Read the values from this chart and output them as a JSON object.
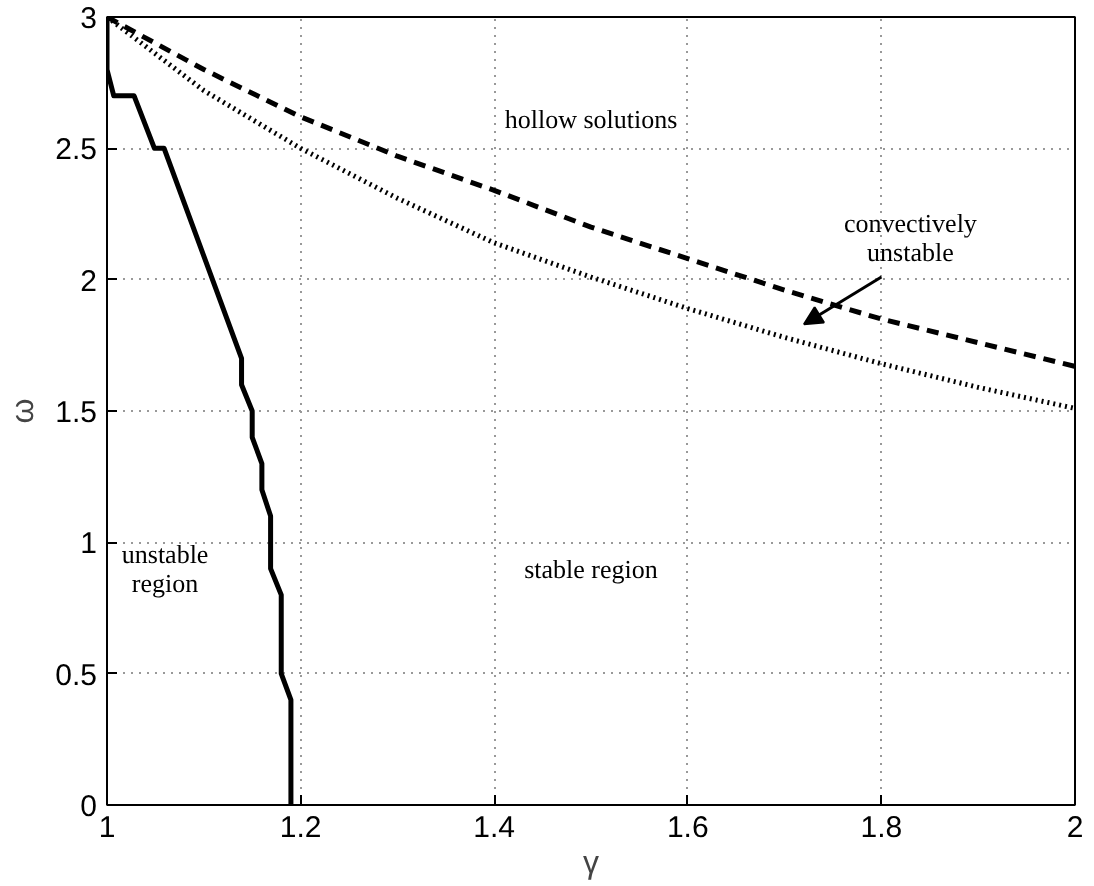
{
  "chart_data": {
    "type": "line",
    "xlabel": "γ",
    "ylabel": "ω",
    "xlim": [
      1,
      2
    ],
    "ylim": [
      0,
      3
    ],
    "xticks": [
      1,
      1.2,
      1.4,
      1.6,
      1.8,
      2
    ],
    "yticks": [
      0,
      0.5,
      1,
      1.5,
      2,
      2.5,
      3
    ],
    "grid": true,
    "series": [
      {
        "color": "#000000",
        "line_style": "solid",
        "x": [
          1,
          1,
          1.007,
          1.028,
          1.049,
          1.059,
          1.139,
          1.139,
          1.15,
          1.15,
          1.16,
          1.16,
          1.169,
          1.169,
          1.18,
          1.18,
          1.19,
          1.19
        ],
        "values": [
          3,
          2.8,
          2.7,
          2.7,
          2.5,
          2.5,
          1.7,
          1.6,
          1.5,
          1.4,
          1.3,
          1.2,
          1.1,
          0.9,
          0.8,
          0.5,
          0.4,
          0
        ]
      },
      {
        "color": "#000000",
        "line_style": "dashed",
        "x": [
          1,
          1.1,
          1.2,
          1.3,
          1.4,
          1.5,
          1.6,
          1.7,
          1.8,
          1.9,
          2
        ],
        "values": [
          3,
          2.8,
          2.62,
          2.47,
          2.34,
          2.2,
          2.08,
          1.96,
          1.85,
          1.76,
          1.67
        ]
      },
      {
        "color": "#000000",
        "line_style": "dotted",
        "x": [
          1,
          1.1,
          1.2,
          1.3,
          1.4,
          1.5,
          1.6,
          1.7,
          1.8,
          1.9,
          2
        ],
        "values": [
          3,
          2.72,
          2.5,
          2.31,
          2.14,
          2.01,
          1.89,
          1.78,
          1.68,
          1.59,
          1.51
        ]
      }
    ],
    "annotations": [
      "hollow solutions",
      "convectively\nunstable",
      "stable region",
      "unstable\nregion"
    ]
  }
}
